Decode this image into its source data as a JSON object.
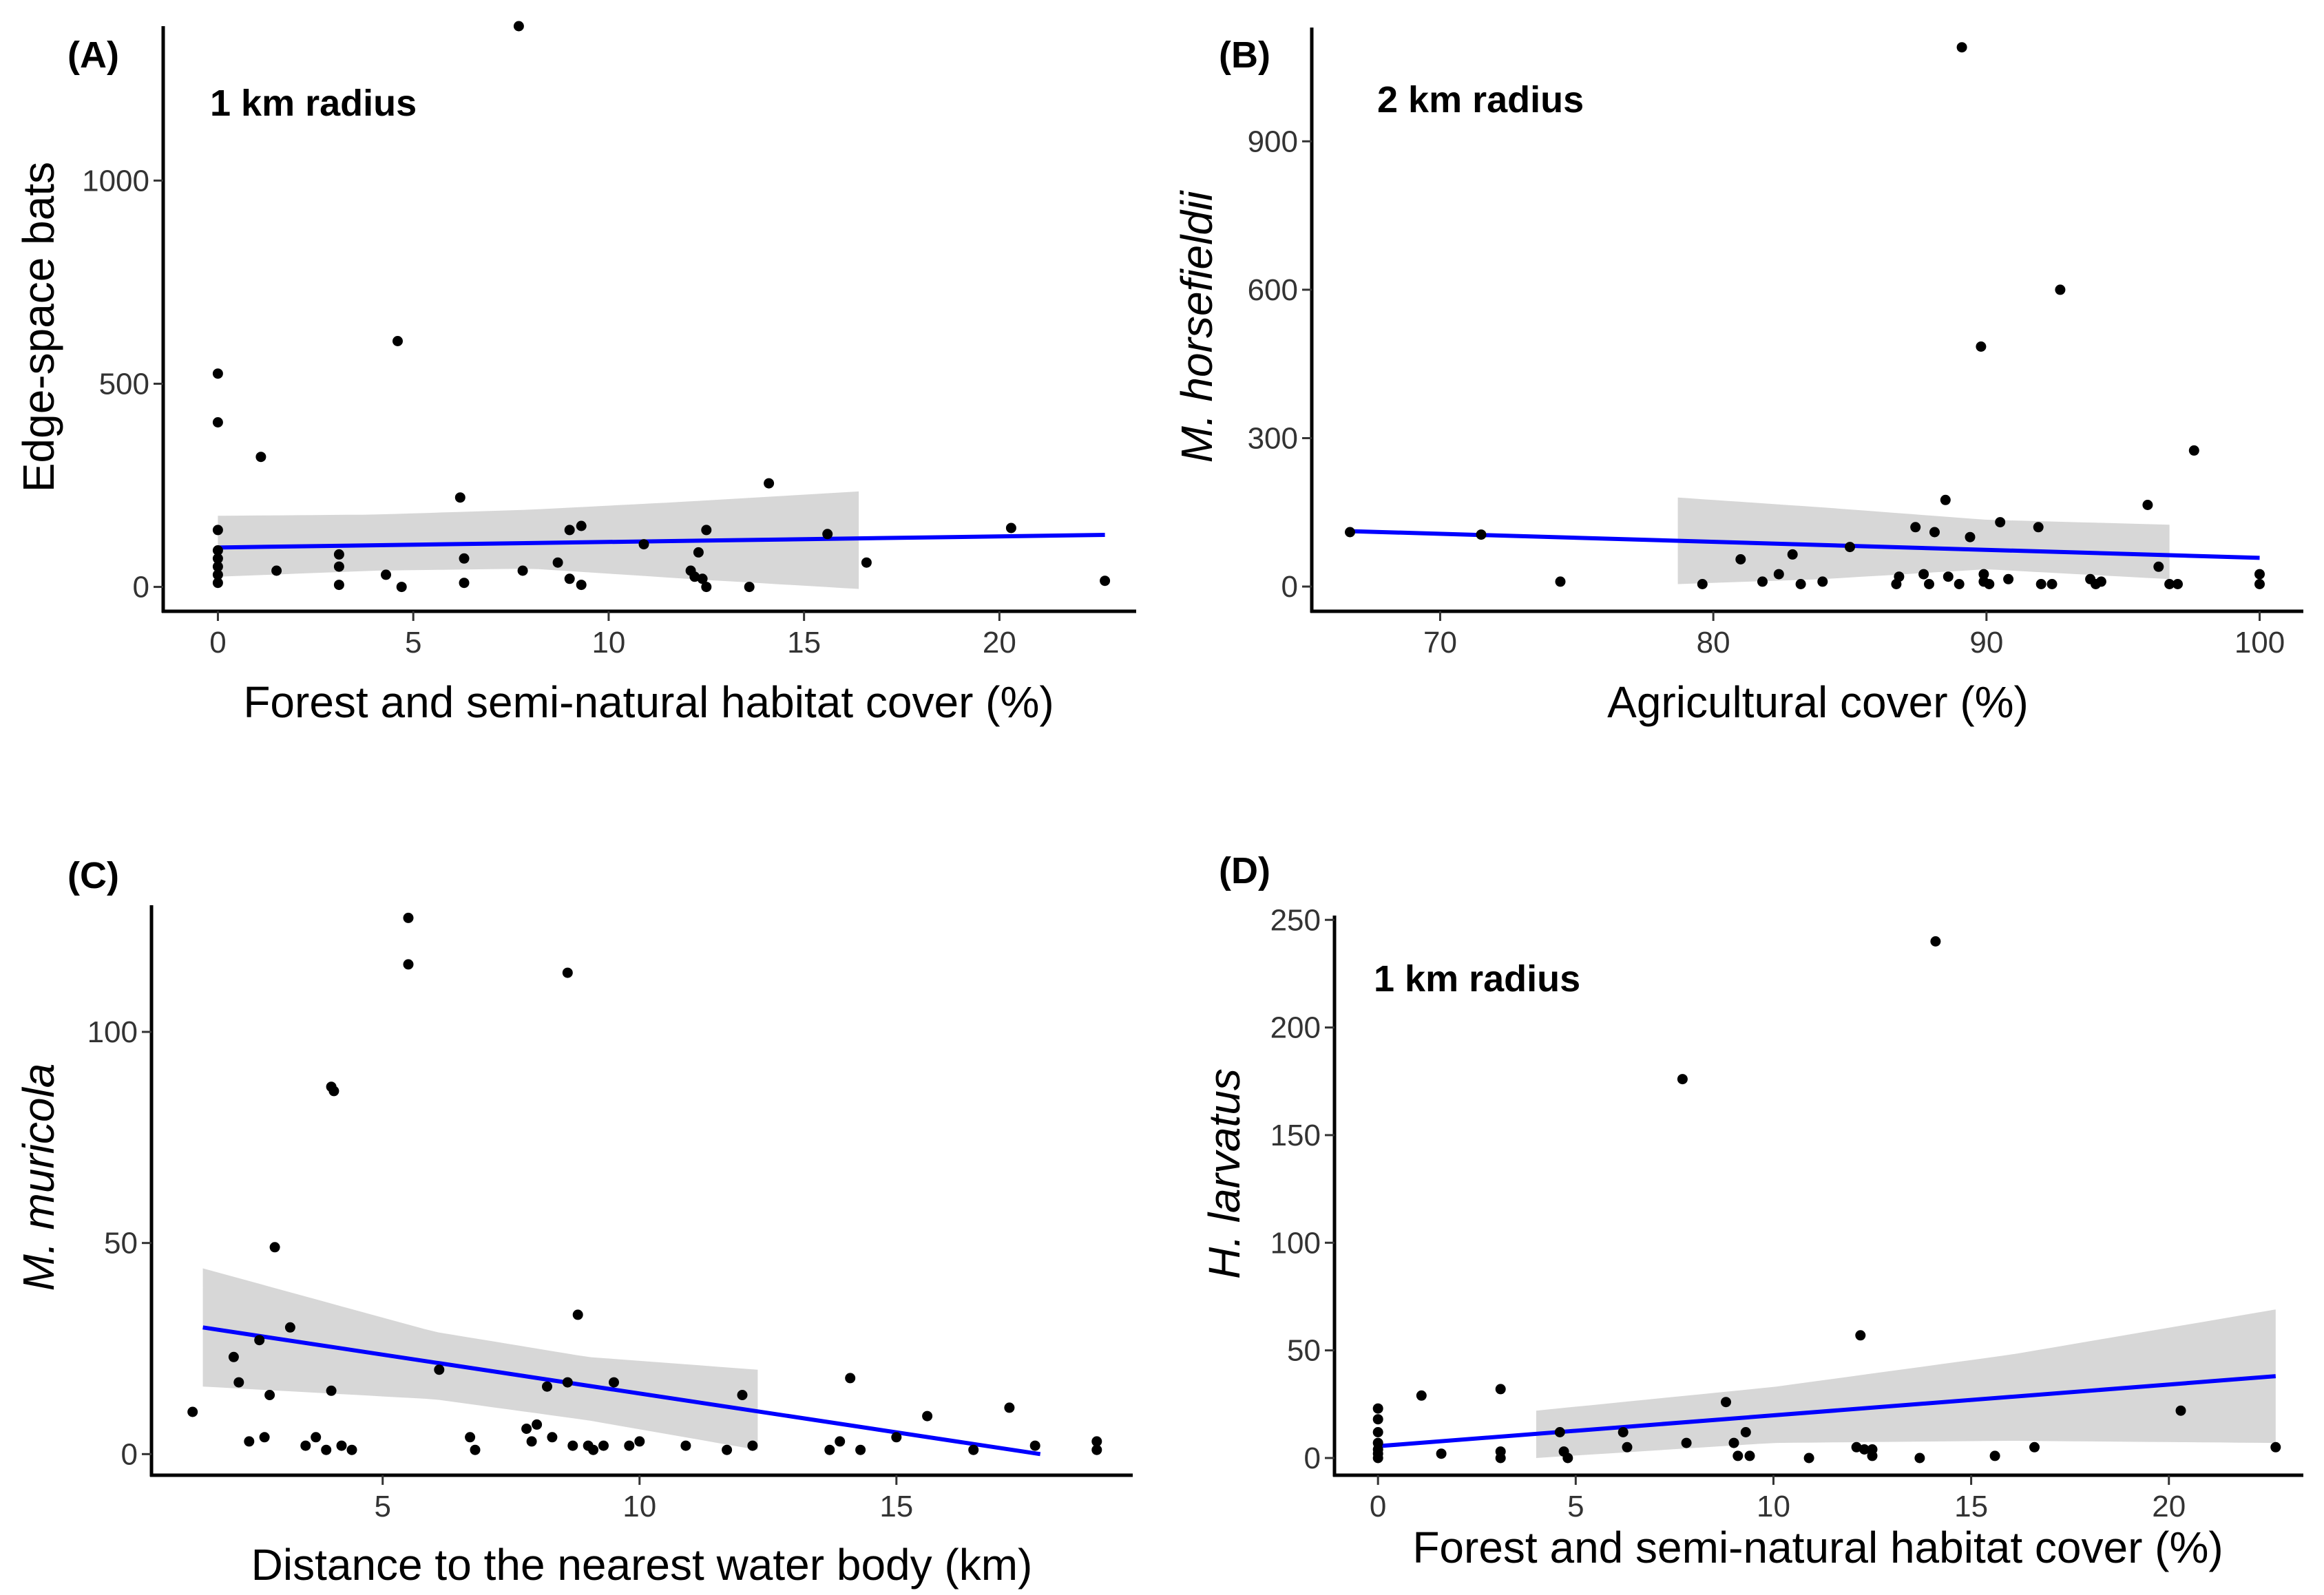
{
  "chart_data": [
    {
      "type": "scatter",
      "panel_label": "(A)",
      "annotation": "1 km radius",
      "xlabel": "Forest and semi-natural habitat cover (%)",
      "ylabel": "Edge-space bats",
      "ylabel_italic": false,
      "xlim": [
        -1.4,
        23.5
      ],
      "ylim": [
        -60,
        1380
      ],
      "x_ticks": [
        0,
        5,
        10,
        15,
        20
      ],
      "y_ticks": [
        0,
        500,
        1000
      ],
      "x_tick_labels": [
        "0",
        "5",
        "10",
        "15",
        "20"
      ],
      "y_tick_labels": [
        "0",
        "500",
        "1000"
      ],
      "points": [
        [
          0,
          525
        ],
        [
          0,
          405
        ],
        [
          0,
          140
        ],
        [
          0,
          90
        ],
        [
          0,
          70
        ],
        [
          0,
          50
        ],
        [
          0,
          30
        ],
        [
          0,
          10
        ],
        [
          1.1,
          320
        ],
        [
          1.5,
          40
        ],
        [
          3.1,
          80
        ],
        [
          3.1,
          50
        ],
        [
          3.1,
          5
        ],
        [
          4.3,
          30
        ],
        [
          4.6,
          605
        ],
        [
          4.7,
          0
        ],
        [
          6.2,
          220
        ],
        [
          6.3,
          70
        ],
        [
          6.3,
          10
        ],
        [
          7.7,
          1390
        ],
        [
          7.8,
          40
        ],
        [
          8.7,
          60
        ],
        [
          9.0,
          140
        ],
        [
          9.0,
          20
        ],
        [
          9.3,
          150
        ],
        [
          9.3,
          5
        ],
        [
          10.9,
          105
        ],
        [
          12.1,
          40
        ],
        [
          12.2,
          25
        ],
        [
          12.3,
          85
        ],
        [
          12.4,
          20
        ],
        [
          12.5,
          140
        ],
        [
          12.5,
          0
        ],
        [
          13.6,
          0
        ],
        [
          14.1,
          255
        ],
        [
          15.6,
          130
        ],
        [
          16.6,
          60
        ],
        [
          20.3,
          145
        ],
        [
          22.7,
          15
        ]
      ],
      "fit": {
        "x": [
          0,
          22.7
        ],
        "y": [
          97,
          128
        ]
      },
      "ci": {
        "x": [
          0,
          4,
          8,
          12,
          16.4
        ],
        "upper": [
          175,
          178,
          190,
          210,
          235
        ],
        "lower": [
          25,
          40,
          45,
          20,
          -5
        ]
      },
      "colors": {
        "line": "#0000FF",
        "ribbon": "#D3D3D3",
        "point": "#000000"
      }
    },
    {
      "type": "scatter",
      "panel_label": "(B)",
      "annotation": "2 km radius",
      "xlabel": "Agricultural cover (%)",
      "ylabel": "M. horsefieldii",
      "ylabel_italic": true,
      "xlim": [
        65.3,
        101.6
      ],
      "ylim": [
        -50,
        1130
      ],
      "x_ticks": [
        70,
        80,
        90,
        100
      ],
      "y_ticks": [
        0,
        300,
        600,
        900
      ],
      "x_tick_labels": [
        "70",
        "80",
        "90",
        "100"
      ],
      "y_tick_labels": [
        "0",
        "300",
        "600",
        "900"
      ],
      "points": [
        [
          66.7,
          110
        ],
        [
          71.5,
          105
        ],
        [
          74.4,
          10
        ],
        [
          79.6,
          5
        ],
        [
          81.0,
          55
        ],
        [
          81.8,
          10
        ],
        [
          82.4,
          25
        ],
        [
          82.9,
          65
        ],
        [
          83.2,
          5
        ],
        [
          84.0,
          10
        ],
        [
          85.0,
          80
        ],
        [
          86.7,
          5
        ],
        [
          86.8,
          20
        ],
        [
          87.4,
          120
        ],
        [
          87.7,
          25
        ],
        [
          87.9,
          5
        ],
        [
          88.1,
          110
        ],
        [
          88.5,
          175
        ],
        [
          88.6,
          20
        ],
        [
          89.0,
          5
        ],
        [
          89.1,
          1090
        ],
        [
          89.4,
          100
        ],
        [
          89.8,
          485
        ],
        [
          89.9,
          10
        ],
        [
          89.9,
          25
        ],
        [
          90.1,
          5
        ],
        [
          90.5,
          130
        ],
        [
          90.8,
          15
        ],
        [
          91.9,
          120
        ],
        [
          92.0,
          5
        ],
        [
          92.4,
          5
        ],
        [
          92.7,
          600
        ],
        [
          93.8,
          15
        ],
        [
          94.0,
          5
        ],
        [
          94.2,
          10
        ],
        [
          95.9,
          165
        ],
        [
          96.3,
          40
        ],
        [
          96.7,
          5
        ],
        [
          97.0,
          5
        ],
        [
          97.6,
          275
        ],
        [
          100,
          25
        ],
        [
          100,
          5
        ]
      ],
      "fit": {
        "x": [
          66.7,
          100
        ],
        "y": [
          112,
          58
        ]
      },
      "ci": {
        "x": [
          78.7,
          84,
          90,
          96.7
        ],
        "upper": [
          180,
          160,
          135,
          125
        ],
        "lower": [
          5,
          15,
          35,
          15
        ]
      },
      "colors": {
        "line": "#0000FF",
        "ribbon": "#D3D3D3",
        "point": "#000000"
      }
    },
    {
      "type": "scatter",
      "panel_label": "(C)",
      "annotation": "",
      "xlabel": "Distance to the nearest water body (km)",
      "ylabel": "M. muricola",
      "ylabel_italic": true,
      "xlim": [
        0.5,
        19.6
      ],
      "ylim": [
        -5,
        130
      ],
      "x_ticks": [
        5,
        10,
        15
      ],
      "y_ticks": [
        0,
        50,
        100
      ],
      "x_tick_labels": [
        "5",
        "10",
        "15"
      ],
      "y_tick_labels": [
        "0",
        "50",
        "100"
      ],
      "points": [
        [
          1.3,
          10
        ],
        [
          2.1,
          23
        ],
        [
          2.2,
          17
        ],
        [
          2.4,
          3
        ],
        [
          2.6,
          27
        ],
        [
          2.7,
          4
        ],
        [
          2.8,
          14
        ],
        [
          2.9,
          49
        ],
        [
          3.2,
          30
        ],
        [
          3.5,
          2
        ],
        [
          3.7,
          4
        ],
        [
          3.9,
          1
        ],
        [
          4.0,
          87
        ],
        [
          4.05,
          86
        ],
        [
          4.0,
          15
        ],
        [
          4.2,
          2
        ],
        [
          4.4,
          1
        ],
        [
          5.5,
          127
        ],
        [
          5.5,
          116
        ],
        [
          6.1,
          20
        ],
        [
          6.7,
          4
        ],
        [
          6.8,
          1
        ],
        [
          7.8,
          6
        ],
        [
          7.9,
          3
        ],
        [
          8.0,
          7
        ],
        [
          8.2,
          16
        ],
        [
          8.3,
          4
        ],
        [
          8.6,
          114
        ],
        [
          8.6,
          17
        ],
        [
          8.7,
          2
        ],
        [
          8.8,
          33
        ],
        [
          9.0,
          2
        ],
        [
          9.1,
          1
        ],
        [
          9.3,
          2
        ],
        [
          9.5,
          17
        ],
        [
          9.8,
          2
        ],
        [
          10.0,
          3
        ],
        [
          10.9,
          2
        ],
        [
          11.7,
          1
        ],
        [
          12.0,
          14
        ],
        [
          12.2,
          2
        ],
        [
          13.7,
          1
        ],
        [
          13.9,
          3
        ],
        [
          14.1,
          18
        ],
        [
          14.3,
          1
        ],
        [
          15.0,
          4
        ],
        [
          15.6,
          9
        ],
        [
          16.5,
          1
        ],
        [
          17.2,
          11
        ],
        [
          17.7,
          2
        ],
        [
          18.9,
          3
        ],
        [
          18.9,
          1
        ]
      ],
      "fit": {
        "x": [
          1.5,
          17.8
        ],
        "y": [
          30,
          0
        ]
      },
      "ci": {
        "x": [
          1.5,
          6,
          9,
          12.3
        ],
        "upper": [
          44,
          29,
          23,
          20
        ],
        "lower": [
          16,
          13,
          8,
          1
        ]
      },
      "colors": {
        "line": "#0000FF",
        "ribbon": "#D3D3D3",
        "point": "#000000"
      }
    },
    {
      "type": "scatter",
      "panel_label": "(D)",
      "annotation": "1 km radius",
      "xlabel": "Forest and semi-natural habitat cover (%)",
      "ylabel": "H. larvatus",
      "ylabel_italic": true,
      "xlim": [
        -1.1,
        23.4
      ],
      "ylim": [
        -8,
        252
      ],
      "x_ticks": [
        0,
        5,
        10,
        15,
        20
      ],
      "y_ticks": [
        0,
        50,
        100,
        150,
        200,
        250
      ],
      "x_tick_labels": [
        "0",
        "5",
        "10",
        "15",
        "20"
      ],
      "y_tick_labels": [
        "0",
        "50",
        "100",
        "150",
        "200",
        "250"
      ],
      "points": [
        [
          0,
          23
        ],
        [
          0,
          18
        ],
        [
          0,
          12
        ],
        [
          0,
          7
        ],
        [
          0,
          4
        ],
        [
          0,
          2
        ],
        [
          0,
          0
        ],
        [
          1.1,
          29
        ],
        [
          1.6,
          2
        ],
        [
          3.1,
          32
        ],
        [
          3.1,
          3
        ],
        [
          3.1,
          0
        ],
        [
          4.6,
          12
        ],
        [
          4.7,
          3
        ],
        [
          4.8,
          0
        ],
        [
          6.2,
          12
        ],
        [
          6.3,
          5
        ],
        [
          7.7,
          176
        ],
        [
          7.8,
          7
        ],
        [
          8.8,
          26
        ],
        [
          9.0,
          7
        ],
        [
          9.1,
          1
        ],
        [
          9.3,
          12
        ],
        [
          9.4,
          1
        ],
        [
          10.9,
          0
        ],
        [
          12.1,
          5
        ],
        [
          12.2,
          57
        ],
        [
          12.3,
          4
        ],
        [
          12.5,
          4
        ],
        [
          12.5,
          1
        ],
        [
          13.7,
          0
        ],
        [
          14.1,
          240
        ],
        [
          15.6,
          1
        ],
        [
          16.6,
          5
        ],
        [
          20.3,
          22
        ],
        [
          22.7,
          5
        ]
      ],
      "fit": {
        "x": [
          0,
          22.7
        ],
        "y": [
          5.5,
          38
        ]
      },
      "ci": {
        "x": [
          4,
          10,
          16,
          22.7
        ],
        "upper": [
          22,
          33,
          48,
          69
        ],
        "lower": [
          0,
          7,
          8,
          7
        ]
      },
      "colors": {
        "line": "#0000FF",
        "ribbon": "#D3D3D3",
        "point": "#000000"
      }
    }
  ]
}
